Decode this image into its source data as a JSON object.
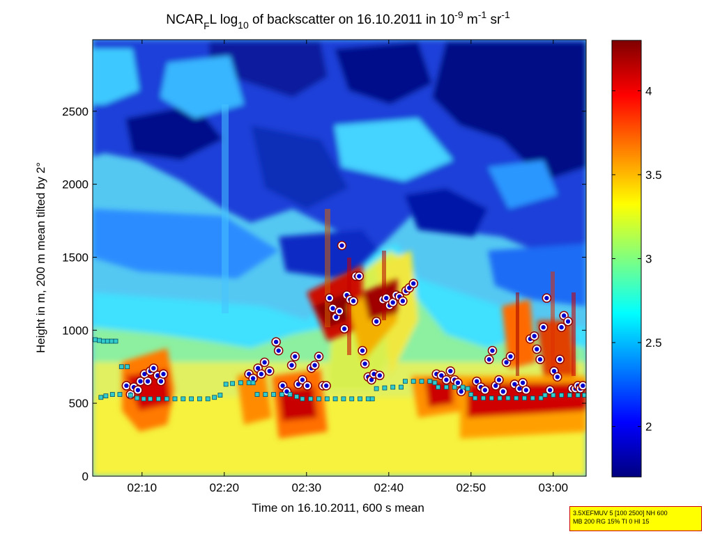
{
  "chart_data": {
    "type": "heatmap",
    "title_parts": {
      "a": "NCAR",
      "sub1": "F",
      "b": "L log",
      "sub2": "10",
      "c": " of backscatter on 16.10.2011 in 10",
      "sup1": "-9",
      "d": " m",
      "sup2": "-1",
      "e": " sr",
      "sup3": "-1"
    },
    "xlabel": "Time on 16.10.2011, 600 s mean",
    "ylabel": "Height in m, 200 m mean tilted by 2°",
    "x_range_minutes": [
      124,
      184
    ],
    "x_ticks": [
      {
        "value": 130,
        "label": "02:10"
      },
      {
        "value": 140,
        "label": "02:20"
      },
      {
        "value": 150,
        "label": "02:30"
      },
      {
        "value": 160,
        "label": "02:40"
      },
      {
        "value": 170,
        "label": "02:50"
      },
      {
        "value": 180,
        "label": "03:00"
      }
    ],
    "ylim": [
      0,
      2990
    ],
    "y_ticks": [
      0,
      500,
      1000,
      1500,
      2000,
      2500
    ],
    "colorbar": {
      "range": [
        1.7,
        4.3
      ],
      "ticks": [
        2,
        2.5,
        3,
        3.5,
        4
      ],
      "tick_labels": [
        "2",
        "2.5",
        "3",
        "3.5",
        "4"
      ],
      "colormap": "jet"
    },
    "boundary_layer_top_m": [
      [
        124.3,
        935
      ],
      [
        124.8,
        930
      ],
      [
        125.3,
        925
      ],
      [
        125.8,
        925
      ],
      [
        126.3,
        925
      ],
      [
        126.8,
        925
      ],
      [
        125.0,
        540
      ],
      [
        125.6,
        550
      ],
      [
        126.4,
        560
      ],
      [
        127.3,
        560
      ],
      [
        127.5,
        750
      ],
      [
        128.2,
        750
      ],
      [
        128.6,
        555
      ],
      [
        129.4,
        535
      ],
      [
        130.2,
        530
      ],
      [
        131.0,
        530
      ],
      [
        132.0,
        530
      ],
      [
        133.0,
        530
      ],
      [
        134.0,
        530
      ],
      [
        135.0,
        530
      ],
      [
        136.0,
        530
      ],
      [
        137.0,
        530
      ],
      [
        138.0,
        530
      ],
      [
        138.8,
        540
      ],
      [
        139.5,
        555
      ],
      [
        140.2,
        630
      ],
      [
        141.0,
        635
      ],
      [
        142.0,
        640
      ],
      [
        143.0,
        640
      ],
      [
        143.5,
        640
      ],
      [
        144.0,
        560
      ],
      [
        145.0,
        560
      ],
      [
        146.0,
        560
      ],
      [
        147.0,
        560
      ],
      [
        148.0,
        560
      ],
      [
        148.8,
        545
      ],
      [
        149.5,
        530
      ],
      [
        150.5,
        530
      ],
      [
        151.5,
        530
      ],
      [
        152.5,
        530
      ],
      [
        153.5,
        530
      ],
      [
        154.5,
        530
      ],
      [
        155.5,
        530
      ],
      [
        156.5,
        530
      ],
      [
        157.5,
        530
      ],
      [
        158.0,
        530
      ],
      [
        158.5,
        600
      ],
      [
        159.5,
        605
      ],
      [
        160.5,
        610
      ],
      [
        161.5,
        610
      ],
      [
        162.0,
        650
      ],
      [
        163.0,
        650
      ],
      [
        164.0,
        650
      ],
      [
        165.0,
        650
      ],
      [
        165.6,
        640
      ],
      [
        166.0,
        610
      ],
      [
        167.0,
        610
      ],
      [
        168.0,
        610
      ],
      [
        169.0,
        610
      ],
      [
        169.6,
        600
      ],
      [
        170.0,
        560
      ],
      [
        170.5,
        535
      ],
      [
        171.5,
        535
      ],
      [
        172.5,
        535
      ],
      [
        173.5,
        535
      ],
      [
        174.5,
        535
      ],
      [
        175.5,
        535
      ],
      [
        176.5,
        535
      ],
      [
        177.5,
        535
      ],
      [
        178.5,
        535
      ],
      [
        179.0,
        555
      ],
      [
        180.0,
        555
      ],
      [
        181.0,
        555
      ],
      [
        182.0,
        555
      ],
      [
        183.0,
        555
      ],
      [
        183.8,
        555
      ]
    ],
    "cloud_base_points_m": [
      [
        128.1,
        620
      ],
      [
        128.6,
        560
      ],
      [
        129.0,
        610
      ],
      [
        129.5,
        590
      ],
      [
        129.8,
        650
      ],
      [
        130.3,
        700
      ],
      [
        130.7,
        650
      ],
      [
        131.0,
        720
      ],
      [
        131.4,
        740
      ],
      [
        131.9,
        690
      ],
      [
        132.3,
        650
      ],
      [
        132.6,
        700
      ],
      [
        143.0,
        700
      ],
      [
        143.5,
        670
      ],
      [
        144.1,
        740
      ],
      [
        144.5,
        700
      ],
      [
        144.9,
        780
      ],
      [
        145.5,
        720
      ],
      [
        146.3,
        920
      ],
      [
        146.6,
        860
      ],
      [
        147.1,
        620
      ],
      [
        147.6,
        580
      ],
      [
        148.2,
        760
      ],
      [
        148.6,
        820
      ],
      [
        149.0,
        630
      ],
      [
        149.5,
        660
      ],
      [
        150.1,
        620
      ],
      [
        150.6,
        740
      ],
      [
        151.0,
        760
      ],
      [
        151.5,
        820
      ],
      [
        152.0,
        620
      ],
      [
        152.4,
        620
      ],
      [
        152.8,
        1220
      ],
      [
        153.2,
        1150
      ],
      [
        153.6,
        1090
      ],
      [
        154.0,
        1130
      ],
      [
        154.3,
        1580
      ],
      [
        154.6,
        1010
      ],
      [
        154.9,
        1240
      ],
      [
        155.3,
        1210
      ],
      [
        155.7,
        1200
      ],
      [
        156.0,
        1370
      ],
      [
        156.4,
        1370
      ],
      [
        156.8,
        860
      ],
      [
        157.1,
        770
      ],
      [
        157.5,
        680
      ],
      [
        157.9,
        660
      ],
      [
        158.2,
        700
      ],
      [
        158.5,
        1060
      ],
      [
        158.9,
        690
      ],
      [
        159.3,
        1210
      ],
      [
        159.7,
        1220
      ],
      [
        160.1,
        1170
      ],
      [
        160.5,
        1190
      ],
      [
        160.9,
        1240
      ],
      [
        161.3,
        1230
      ],
      [
        161.7,
        1200
      ],
      [
        162.1,
        1270
      ],
      [
        162.5,
        1290
      ],
      [
        163.0,
        1320
      ],
      [
        165.8,
        700
      ],
      [
        166.4,
        690
      ],
      [
        167.0,
        660
      ],
      [
        167.5,
        720
      ],
      [
        168.0,
        660
      ],
      [
        168.4,
        640
      ],
      [
        168.8,
        580
      ],
      [
        170.7,
        650
      ],
      [
        171.2,
        610
      ],
      [
        171.7,
        590
      ],
      [
        172.2,
        800
      ],
      [
        172.6,
        860
      ],
      [
        173.0,
        620
      ],
      [
        173.4,
        660
      ],
      [
        173.9,
        580
      ],
      [
        174.3,
        780
      ],
      [
        174.8,
        820
      ],
      [
        175.3,
        630
      ],
      [
        175.9,
        600
      ],
      [
        176.3,
        640
      ],
      [
        176.7,
        590
      ],
      [
        177.2,
        940
      ],
      [
        177.7,
        960
      ],
      [
        178.0,
        870
      ],
      [
        178.4,
        800
      ],
      [
        178.8,
        1020
      ],
      [
        179.2,
        1220
      ],
      [
        179.6,
        590
      ],
      [
        180.1,
        720
      ],
      [
        180.5,
        680
      ],
      [
        180.8,
        800
      ],
      [
        181.0,
        1020
      ],
      [
        181.3,
        1100
      ],
      [
        181.8,
        1060
      ],
      [
        182.3,
        600
      ],
      [
        182.7,
        600
      ],
      [
        183.0,
        620
      ],
      [
        183.3,
        600
      ],
      [
        183.6,
        620
      ]
    ]
  },
  "note": {
    "line1": "3.5XEFMUV 5 [100 2500] NH 600",
    "line2": "MB 200 RG 15% TI 0 HI 15"
  },
  "colors": {
    "marker_fill": "#0000cc",
    "marker_ring": "#ffffff",
    "marker_edge": "#8b0000",
    "bl_marker": "#33cccc",
    "note_bg": "#ffff00",
    "note_border": "#cc0000"
  }
}
